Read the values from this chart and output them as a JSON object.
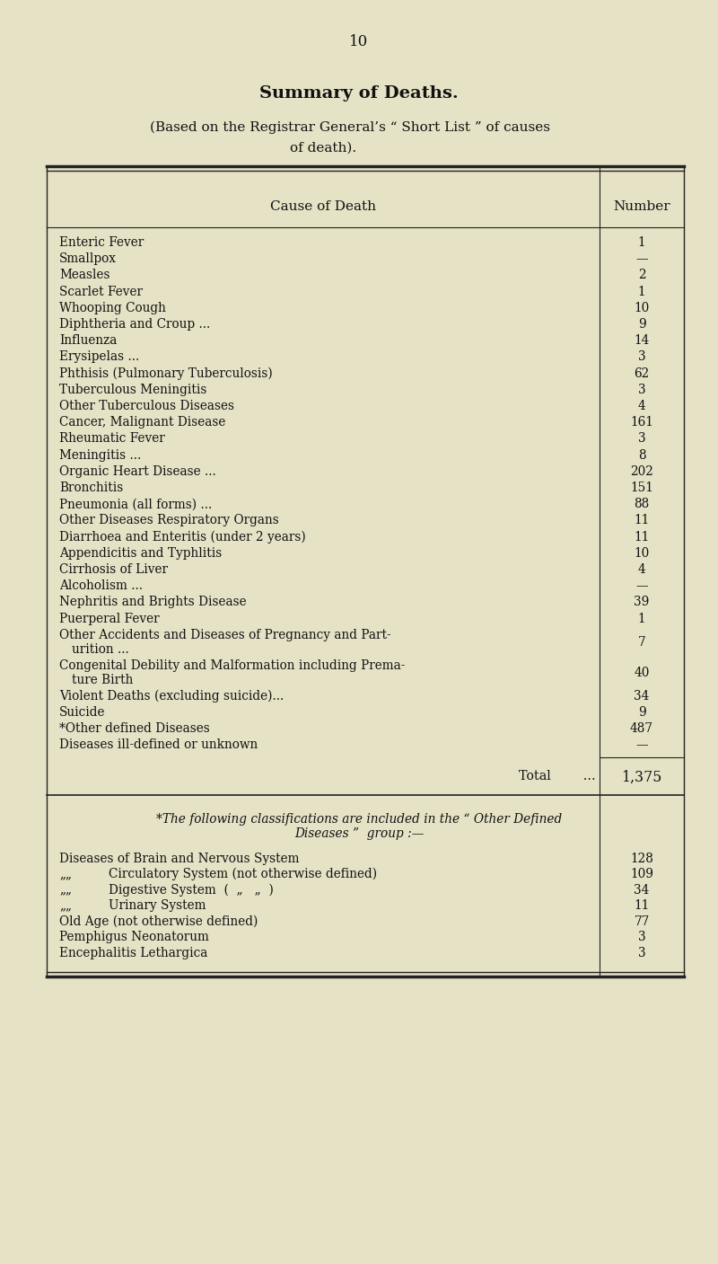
{
  "page_number": "10",
  "title": "Summary of Deaths.",
  "subtitle_line1": "(Based on the Registrar General’s “ Short List ” of causes",
  "subtitle_line2": "of death).",
  "col_header_cause": "Cause of Death",
  "col_header_number": "Number",
  "rows": [
    {
      "cause": "Enteric Fever",
      "dots": "...",
      "number": "1",
      "lines": 1
    },
    {
      "cause": "Smallpox",
      "dots": "...",
      "number": "—",
      "lines": 1
    },
    {
      "cause": "Measles",
      "dots": "...",
      "number": "2",
      "lines": 1
    },
    {
      "cause": "Scarlet Fever",
      "dots": "...",
      "number": "1",
      "lines": 1
    },
    {
      "cause": "Whooping Cough",
      "dots": "...",
      "number": "10",
      "lines": 1
    },
    {
      "cause": "Diphtheria and Croup ...",
      "dots": "...",
      "number": "9",
      "lines": 1
    },
    {
      "cause": "Influenza",
      "dots": "...",
      "number": "14",
      "lines": 1
    },
    {
      "cause": "Erysipelas ...",
      "dots": "...",
      "number": "3",
      "lines": 1
    },
    {
      "cause": "Phthisis (Pulmonary Tuberculosis)",
      "dots": "...",
      "number": "62",
      "lines": 1
    },
    {
      "cause": "Tuberculous Meningitis",
      "dots": "...",
      "number": "3",
      "lines": 1
    },
    {
      "cause": "Other Tuberculous Diseases",
      "dots": "...",
      "number": "4",
      "lines": 1
    },
    {
      "cause": "Cancer, Malignant Disease",
      "dots": "...",
      "number": "161",
      "lines": 1
    },
    {
      "cause": "Rheumatic Fever",
      "dots": "...",
      "number": "3",
      "lines": 1
    },
    {
      "cause": "Meningitis ...",
      "dots": "...",
      "number": "8",
      "lines": 1
    },
    {
      "cause": "Organic Heart Disease ...",
      "dots": "...",
      "number": "202",
      "lines": 1
    },
    {
      "cause": "Bronchitis",
      "dots": "...",
      "number": "151",
      "lines": 1
    },
    {
      "cause": "Pneumonia (all forms) ...",
      "dots": "...",
      "number": "88",
      "lines": 1
    },
    {
      "cause": "Other Diseases Respiratory Organs",
      "dots": "...",
      "number": "11",
      "lines": 1
    },
    {
      "cause": "Diarrhoea and Enteritis (under 2 years)",
      "dots": "...",
      "number": "11",
      "lines": 1
    },
    {
      "cause": "Appendicitis and Typhlitis",
      "dots": "...",
      "number": "10",
      "lines": 1
    },
    {
      "cause": "Cirrhosis of Liver",
      "dots": "...",
      "number": "4",
      "lines": 1
    },
    {
      "cause": "Alcoholism ...",
      "dots": "...",
      "number": "—",
      "lines": 1
    },
    {
      "cause": "Nephritis and Brights Disease",
      "dots": "...",
      "number": "39",
      "lines": 1
    },
    {
      "cause": "Puerperal Fever",
      "dots": "...",
      "number": "1",
      "lines": 1
    },
    {
      "cause": "Other Accidents and Diseases of Pregnancy and Part-",
      "cause2": "    urition ...",
      "dots": "...",
      "number": "7",
      "lines": 2
    },
    {
      "cause": "Congenital Debility and Malformation including Prema-",
      "cause2": "    ture Birth",
      "dots": "...",
      "number": "40",
      "lines": 2
    },
    {
      "cause": "Violent Deaths (excluding suicide)...",
      "dots": "...",
      "number": "34",
      "lines": 1
    },
    {
      "cause": "Suicide",
      "dots": "...",
      "number": "9",
      "lines": 1
    },
    {
      "cause": "*Other defined Diseases",
      "dots": "...",
      "number": "487",
      "lines": 1
    },
    {
      "cause": "Diseases ill-defined or unknown",
      "dots": "...",
      "number": "—",
      "lines": 1
    }
  ],
  "total_label": "Total",
  "total_dots": "...",
  "total_value": "1,375",
  "footnote_line1": "*The following classifications are included in the “ Other Defined",
  "footnote_line2": "Diseases ”  group :—",
  "footnote_rows": [
    {
      "cause": "Diseases of Brain and Nervous System",
      "indent": false,
      "dots": "...",
      "number": "128"
    },
    {
      "cause": "Circulatory System (not otherwise defined)",
      "indent": true,
      "dots": "...",
      "number": "109"
    },
    {
      "cause": "Digestive System  (  „   „  )",
      "indent": true,
      "dots": "...",
      "number": "34"
    },
    {
      "cause": "Urinary System",
      "indent": true,
      "dots": "...",
      "number": "11"
    },
    {
      "cause": "Old Age (not otherwise defined)",
      "indent": false,
      "dots": "...",
      "number": "77"
    },
    {
      "cause": "Pemphigus Neonatorum",
      "indent": false,
      "dots": "...",
      "number": "3"
    },
    {
      "cause": "Encephalitis Lethargica",
      "indent": false,
      "dots": "...",
      "number": "3"
    }
  ],
  "bg_color": "#e6e2c6",
  "text_color": "#111111",
  "border_color": "#222222"
}
